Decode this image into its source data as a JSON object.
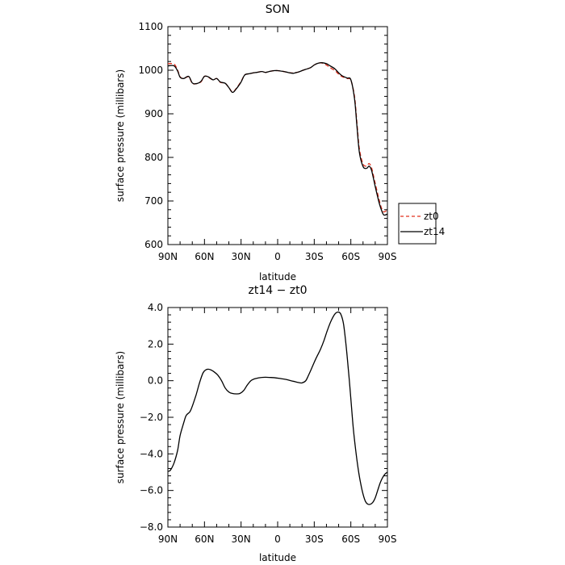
{
  "chart_data": [
    {
      "type": "line",
      "title": "SON",
      "xlabel": "latitude",
      "ylabel": "surface pressure (millibars)",
      "x_tick_labels": [
        "90N",
        "60N",
        "30N",
        "0",
        "30S",
        "60S",
        "90S"
      ],
      "x_tick_values": [
        90,
        60,
        30,
        0,
        -30,
        -60,
        -90
      ],
      "xlim": [
        90,
        -90
      ],
      "y_tick_labels": [
        "600",
        "700",
        "800",
        "900",
        "1000",
        "1100"
      ],
      "y_tick_values": [
        600,
        700,
        800,
        900,
        1000,
        1100
      ],
      "ylim": [
        600,
        1100
      ],
      "legend_position": "right-bottom-outside",
      "series": [
        {
          "name": "zt0",
          "color": "#e0301e",
          "style": "dashed",
          "x": [
            90,
            85,
            82,
            80,
            77,
            73,
            70,
            67,
            63,
            60,
            57,
            53,
            50,
            47,
            43,
            40,
            37,
            34,
            30,
            27,
            23,
            20,
            17,
            13,
            10,
            7,
            3,
            0,
            -3,
            -7,
            -10,
            -13,
            -17,
            -20,
            -23,
            -27,
            -30,
            -33,
            -35,
            -37,
            -40,
            -43,
            -47,
            -50,
            -53,
            -57,
            -60,
            -63,
            -65,
            -67,
            -70,
            -73,
            -75,
            -77,
            -80,
            -83,
            -85,
            -87,
            -90
          ],
          "y": [
            1015,
            1014,
            1000,
            985,
            981,
            985,
            970,
            969,
            973,
            986,
            984,
            978,
            981,
            972,
            970,
            960,
            950,
            958,
            974,
            989,
            992,
            994,
            995,
            997,
            995,
            997,
            999,
            999,
            998,
            996,
            994,
            994,
            996,
            999,
            1002,
            1006,
            1012,
            1016,
            1017,
            1016,
            1012,
            1006,
            999,
            991,
            985,
            981,
            977,
            940,
            880,
            820,
            785,
            780,
            786,
            776,
            740,
            705,
            685,
            675,
            680
          ]
        },
        {
          "name": "zt14",
          "color": "#000000",
          "style": "solid",
          "x": [
            90,
            85,
            82,
            80,
            77,
            73,
            70,
            67,
            63,
            60,
            57,
            53,
            50,
            47,
            43,
            40,
            37,
            34,
            30,
            27,
            23,
            20,
            17,
            13,
            10,
            7,
            3,
            0,
            -3,
            -7,
            -10,
            -13,
            -17,
            -20,
            -23,
            -27,
            -30,
            -33,
            -35,
            -37,
            -40,
            -43,
            -47,
            -50,
            -53,
            -57,
            -60,
            -63,
            -65,
            -67,
            -70,
            -73,
            -75,
            -77,
            -80,
            -83,
            -85,
            -87,
            -90
          ],
          "y": [
            1010,
            1010,
            998,
            984,
            981,
            986,
            971,
            969,
            974,
            986,
            985,
            978,
            981,
            973,
            970,
            960,
            949,
            957,
            973,
            989,
            992,
            994,
            995,
            997,
            995,
            997,
            999,
            999,
            998,
            996,
            994,
            993,
            996,
            999,
            1002,
            1006,
            1012,
            1016,
            1017,
            1017,
            1015,
            1010,
            1003,
            994,
            987,
            982,
            978,
            935,
            872,
            812,
            779,
            775,
            780,
            770,
            733,
            698,
            680,
            668,
            670
          ]
        }
      ]
    },
    {
      "type": "line",
      "title": "zt14 − zt0",
      "xlabel": "latitude",
      "ylabel": "surface pressure (millibars)",
      "x_tick_labels": [
        "90N",
        "60N",
        "30N",
        "0",
        "30S",
        "60S",
        "90S"
      ],
      "x_tick_values": [
        90,
        60,
        30,
        0,
        -30,
        -60,
        -90
      ],
      "xlim": [
        90,
        -90
      ],
      "y_tick_labels": [
        "−8.0",
        "−6.0",
        "−4.0",
        "−2.0",
        "0.0",
        "2.0",
        "4.0"
      ],
      "y_tick_values": [
        -8,
        -6,
        -4,
        -2,
        0,
        2,
        4
      ],
      "ylim": [
        -8,
        4
      ],
      "series": [
        {
          "name": "",
          "color": "#000000",
          "style": "solid",
          "x": [
            90,
            88,
            85,
            82,
            80,
            77,
            75,
            72,
            70,
            67,
            64,
            61,
            58,
            55,
            52,
            49,
            46,
            43,
            40,
            37,
            34,
            31,
            28,
            25,
            22,
            19,
            16,
            13,
            10,
            7,
            4,
            1,
            -2,
            -5,
            -8,
            -11,
            -14,
            -17,
            -20,
            -23,
            -26,
            -29,
            -32,
            -35,
            -38,
            -41,
            -44,
            -47,
            -50,
            -52,
            -54,
            -56,
            -58,
            -60,
            -62,
            -64,
            -66,
            -68,
            -70,
            -72,
            -74,
            -76,
            -78,
            -80,
            -82,
            -84,
            -86,
            -88,
            -90
          ],
          "y": [
            -4.95,
            -4.9,
            -4.5,
            -3.8,
            -3.0,
            -2.3,
            -1.9,
            -1.7,
            -1.4,
            -0.8,
            -0.1,
            0.45,
            0.62,
            0.6,
            0.48,
            0.3,
            0.0,
            -0.4,
            -0.62,
            -0.7,
            -0.72,
            -0.7,
            -0.55,
            -0.25,
            0.0,
            0.1,
            0.15,
            0.18,
            0.19,
            0.18,
            0.17,
            0.15,
            0.12,
            0.09,
            0.05,
            0.0,
            -0.05,
            -0.1,
            -0.12,
            0.0,
            0.4,
            0.85,
            1.3,
            1.7,
            2.2,
            2.8,
            3.3,
            3.65,
            3.75,
            3.6,
            3.1,
            2.0,
            0.6,
            -1.0,
            -2.6,
            -3.8,
            -4.8,
            -5.6,
            -6.2,
            -6.6,
            -6.75,
            -6.75,
            -6.65,
            -6.4,
            -6.0,
            -5.6,
            -5.3,
            -5.1,
            -5.0
          ]
        }
      ]
    }
  ]
}
